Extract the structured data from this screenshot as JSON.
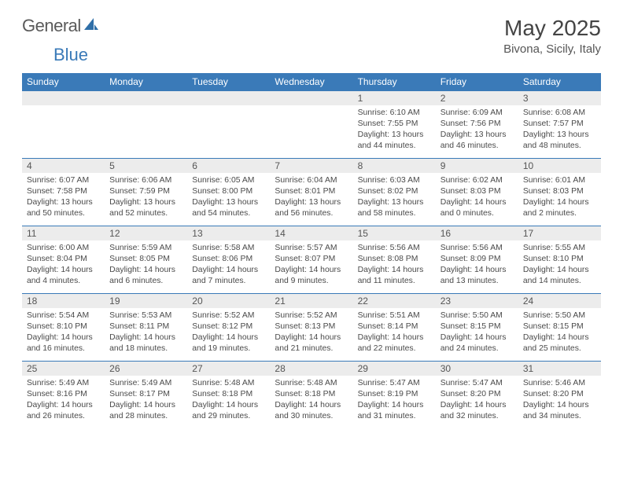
{
  "brand": {
    "part1": "General",
    "part2": "Blue"
  },
  "title": "May 2025",
  "location": "Bivona, Sicily, Italy",
  "colors": {
    "header_bg": "#3a7ab8",
    "header_text": "#ffffff",
    "daynum_bg": "#ececec",
    "row_border": "#3a7ab8",
    "text": "#4a4a4a",
    "accent": "#3a7ab8"
  },
  "typography": {
    "title_fontsize": 28,
    "location_fontsize": 15,
    "dayhead_fontsize": 12,
    "body_fontsize": 10.4
  },
  "daynames": [
    "Sunday",
    "Monday",
    "Tuesday",
    "Wednesday",
    "Thursday",
    "Friday",
    "Saturday"
  ],
  "weeks": [
    [
      null,
      null,
      null,
      null,
      {
        "n": "1",
        "sr": "Sunrise: 6:10 AM",
        "ss": "Sunset: 7:55 PM",
        "dl1": "Daylight: 13 hours",
        "dl2": "and 44 minutes."
      },
      {
        "n": "2",
        "sr": "Sunrise: 6:09 AM",
        "ss": "Sunset: 7:56 PM",
        "dl1": "Daylight: 13 hours",
        "dl2": "and 46 minutes."
      },
      {
        "n": "3",
        "sr": "Sunrise: 6:08 AM",
        "ss": "Sunset: 7:57 PM",
        "dl1": "Daylight: 13 hours",
        "dl2": "and 48 minutes."
      }
    ],
    [
      {
        "n": "4",
        "sr": "Sunrise: 6:07 AM",
        "ss": "Sunset: 7:58 PM",
        "dl1": "Daylight: 13 hours",
        "dl2": "and 50 minutes."
      },
      {
        "n": "5",
        "sr": "Sunrise: 6:06 AM",
        "ss": "Sunset: 7:59 PM",
        "dl1": "Daylight: 13 hours",
        "dl2": "and 52 minutes."
      },
      {
        "n": "6",
        "sr": "Sunrise: 6:05 AM",
        "ss": "Sunset: 8:00 PM",
        "dl1": "Daylight: 13 hours",
        "dl2": "and 54 minutes."
      },
      {
        "n": "7",
        "sr": "Sunrise: 6:04 AM",
        "ss": "Sunset: 8:01 PM",
        "dl1": "Daylight: 13 hours",
        "dl2": "and 56 minutes."
      },
      {
        "n": "8",
        "sr": "Sunrise: 6:03 AM",
        "ss": "Sunset: 8:02 PM",
        "dl1": "Daylight: 13 hours",
        "dl2": "and 58 minutes."
      },
      {
        "n": "9",
        "sr": "Sunrise: 6:02 AM",
        "ss": "Sunset: 8:03 PM",
        "dl1": "Daylight: 14 hours",
        "dl2": "and 0 minutes."
      },
      {
        "n": "10",
        "sr": "Sunrise: 6:01 AM",
        "ss": "Sunset: 8:03 PM",
        "dl1": "Daylight: 14 hours",
        "dl2": "and 2 minutes."
      }
    ],
    [
      {
        "n": "11",
        "sr": "Sunrise: 6:00 AM",
        "ss": "Sunset: 8:04 PM",
        "dl1": "Daylight: 14 hours",
        "dl2": "and 4 minutes."
      },
      {
        "n": "12",
        "sr": "Sunrise: 5:59 AM",
        "ss": "Sunset: 8:05 PM",
        "dl1": "Daylight: 14 hours",
        "dl2": "and 6 minutes."
      },
      {
        "n": "13",
        "sr": "Sunrise: 5:58 AM",
        "ss": "Sunset: 8:06 PM",
        "dl1": "Daylight: 14 hours",
        "dl2": "and 7 minutes."
      },
      {
        "n": "14",
        "sr": "Sunrise: 5:57 AM",
        "ss": "Sunset: 8:07 PM",
        "dl1": "Daylight: 14 hours",
        "dl2": "and 9 minutes."
      },
      {
        "n": "15",
        "sr": "Sunrise: 5:56 AM",
        "ss": "Sunset: 8:08 PM",
        "dl1": "Daylight: 14 hours",
        "dl2": "and 11 minutes."
      },
      {
        "n": "16",
        "sr": "Sunrise: 5:56 AM",
        "ss": "Sunset: 8:09 PM",
        "dl1": "Daylight: 14 hours",
        "dl2": "and 13 minutes."
      },
      {
        "n": "17",
        "sr": "Sunrise: 5:55 AM",
        "ss": "Sunset: 8:10 PM",
        "dl1": "Daylight: 14 hours",
        "dl2": "and 14 minutes."
      }
    ],
    [
      {
        "n": "18",
        "sr": "Sunrise: 5:54 AM",
        "ss": "Sunset: 8:10 PM",
        "dl1": "Daylight: 14 hours",
        "dl2": "and 16 minutes."
      },
      {
        "n": "19",
        "sr": "Sunrise: 5:53 AM",
        "ss": "Sunset: 8:11 PM",
        "dl1": "Daylight: 14 hours",
        "dl2": "and 18 minutes."
      },
      {
        "n": "20",
        "sr": "Sunrise: 5:52 AM",
        "ss": "Sunset: 8:12 PM",
        "dl1": "Daylight: 14 hours",
        "dl2": "and 19 minutes."
      },
      {
        "n": "21",
        "sr": "Sunrise: 5:52 AM",
        "ss": "Sunset: 8:13 PM",
        "dl1": "Daylight: 14 hours",
        "dl2": "and 21 minutes."
      },
      {
        "n": "22",
        "sr": "Sunrise: 5:51 AM",
        "ss": "Sunset: 8:14 PM",
        "dl1": "Daylight: 14 hours",
        "dl2": "and 22 minutes."
      },
      {
        "n": "23",
        "sr": "Sunrise: 5:50 AM",
        "ss": "Sunset: 8:15 PM",
        "dl1": "Daylight: 14 hours",
        "dl2": "and 24 minutes."
      },
      {
        "n": "24",
        "sr": "Sunrise: 5:50 AM",
        "ss": "Sunset: 8:15 PM",
        "dl1": "Daylight: 14 hours",
        "dl2": "and 25 minutes."
      }
    ],
    [
      {
        "n": "25",
        "sr": "Sunrise: 5:49 AM",
        "ss": "Sunset: 8:16 PM",
        "dl1": "Daylight: 14 hours",
        "dl2": "and 26 minutes."
      },
      {
        "n": "26",
        "sr": "Sunrise: 5:49 AM",
        "ss": "Sunset: 8:17 PM",
        "dl1": "Daylight: 14 hours",
        "dl2": "and 28 minutes."
      },
      {
        "n": "27",
        "sr": "Sunrise: 5:48 AM",
        "ss": "Sunset: 8:18 PM",
        "dl1": "Daylight: 14 hours",
        "dl2": "and 29 minutes."
      },
      {
        "n": "28",
        "sr": "Sunrise: 5:48 AM",
        "ss": "Sunset: 8:18 PM",
        "dl1": "Daylight: 14 hours",
        "dl2": "and 30 minutes."
      },
      {
        "n": "29",
        "sr": "Sunrise: 5:47 AM",
        "ss": "Sunset: 8:19 PM",
        "dl1": "Daylight: 14 hours",
        "dl2": "and 31 minutes."
      },
      {
        "n": "30",
        "sr": "Sunrise: 5:47 AM",
        "ss": "Sunset: 8:20 PM",
        "dl1": "Daylight: 14 hours",
        "dl2": "and 32 minutes."
      },
      {
        "n": "31",
        "sr": "Sunrise: 5:46 AM",
        "ss": "Sunset: 8:20 PM",
        "dl1": "Daylight: 14 hours",
        "dl2": "and 34 minutes."
      }
    ]
  ]
}
